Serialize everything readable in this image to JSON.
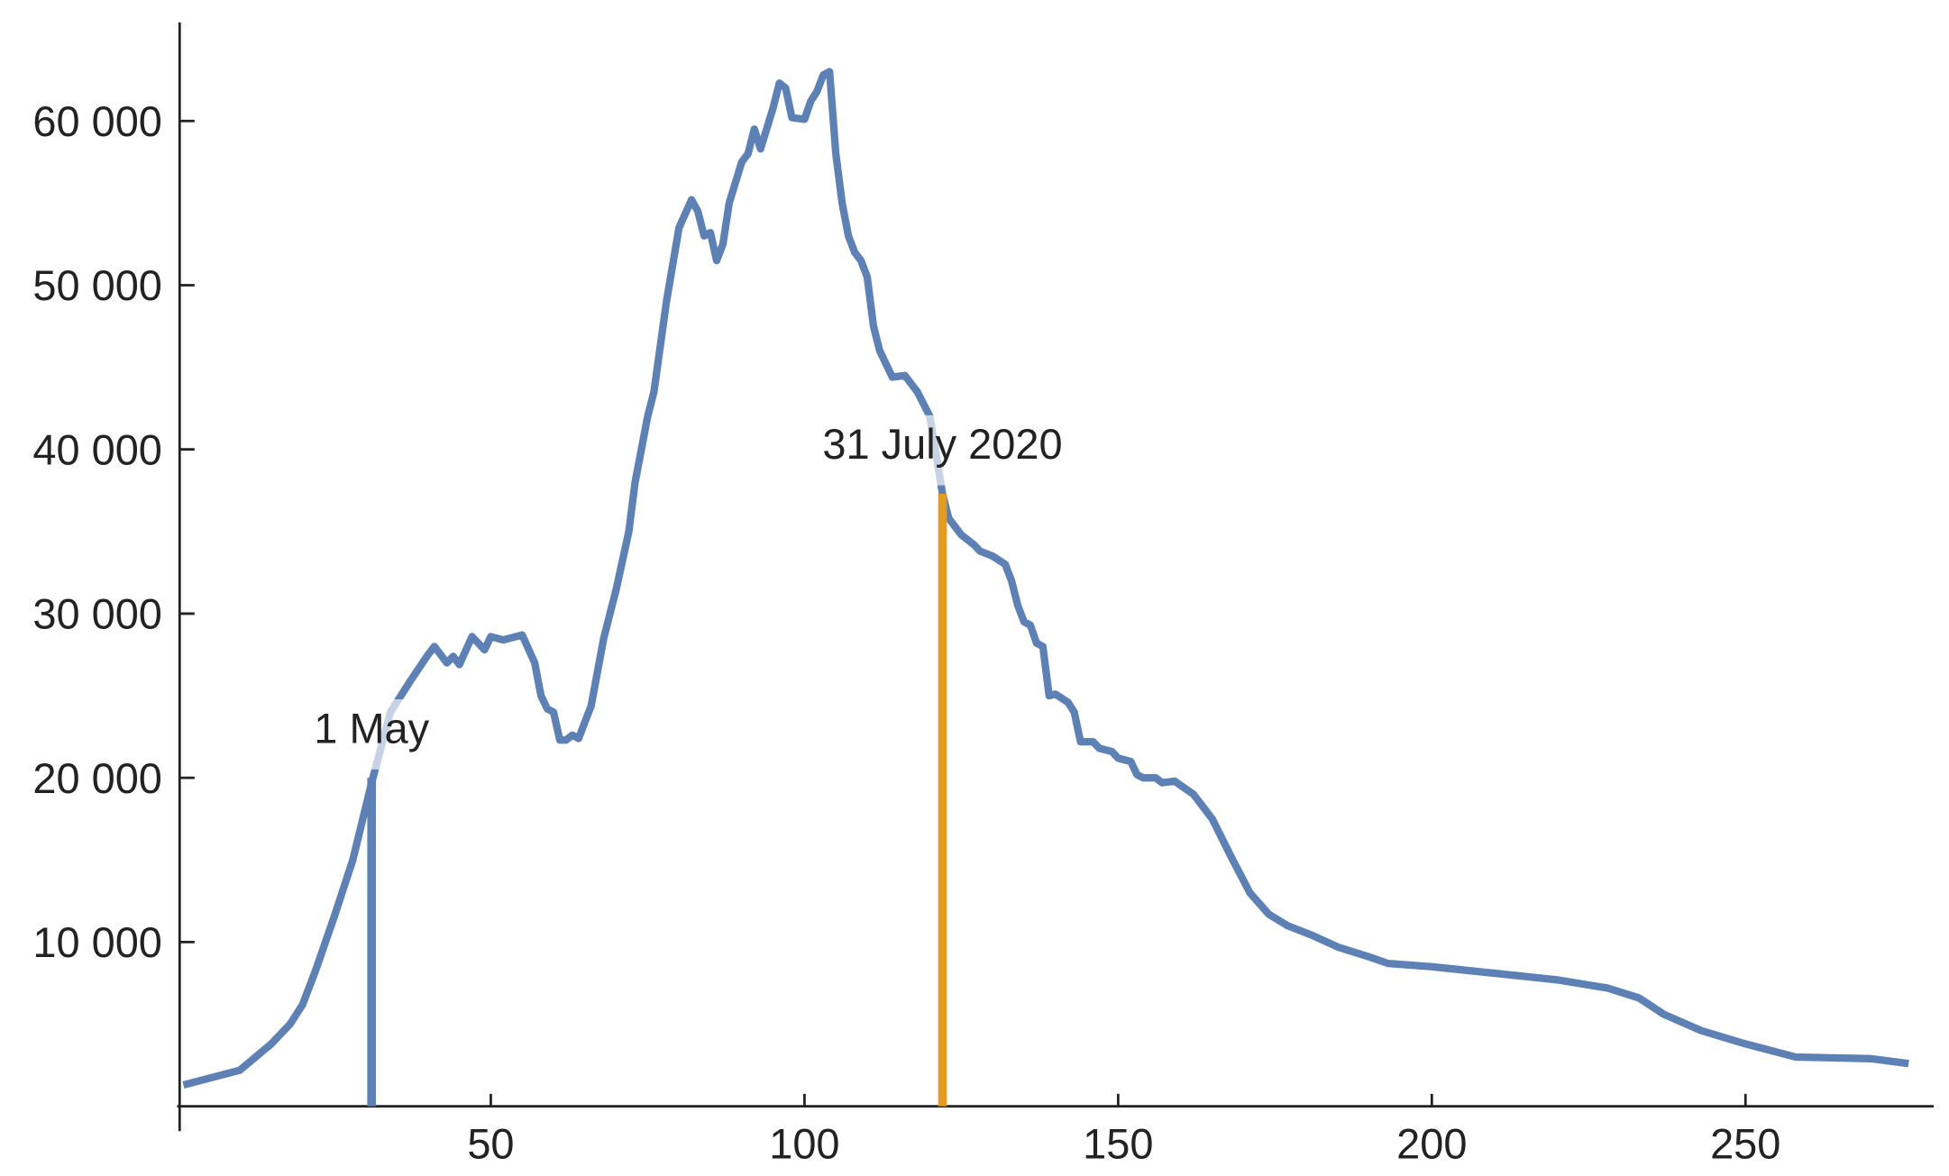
{
  "chart_data": {
    "type": "line",
    "x": [
      1,
      10,
      15,
      18,
      20,
      22,
      25,
      28,
      31,
      34,
      37,
      40,
      41,
      43,
      44,
      45,
      47,
      49,
      50,
      52,
      55,
      57,
      58,
      59,
      60,
      61,
      62,
      63,
      64,
      66,
      68,
      70,
      72,
      73,
      75,
      76,
      78,
      80,
      82,
      83,
      84,
      85,
      86,
      87,
      88,
      90,
      91,
      92,
      93,
      95,
      96,
      97,
      98,
      100,
      101,
      102,
      103,
      104,
      105,
      106,
      107,
      108,
      109,
      110,
      111,
      112,
      114,
      116,
      118,
      120,
      122,
      123,
      125,
      127,
      128,
      130,
      132,
      133,
      134,
      135,
      136,
      137,
      138,
      139,
      140,
      142,
      143,
      144,
      146,
      147,
      149,
      150,
      152,
      153,
      154,
      156,
      157,
      159,
      162,
      165,
      168,
      171,
      174,
      177,
      181,
      185,
      190,
      193,
      200,
      210,
      220,
      228,
      233,
      237,
      243,
      250,
      258,
      270,
      276
    ],
    "values": [
      1300,
      2200,
      3800,
      5000,
      6200,
      8200,
      11500,
      15000,
      19700,
      24000,
      25800,
      27500,
      28000,
      27000,
      27400,
      26900,
      28600,
      27800,
      28600,
      28400,
      28700,
      27000,
      25000,
      24200,
      24000,
      22300,
      22300,
      22600,
      22400,
      24400,
      28500,
      31500,
      35000,
      38000,
      42000,
      43500,
      49000,
      53500,
      55200,
      54500,
      53000,
      53200,
      51500,
      52500,
      55000,
      57500,
      58000,
      59500,
      58300,
      60800,
      62300,
      62000,
      60200,
      60100,
      61200,
      61800,
      62800,
      63000,
      58000,
      55000,
      53000,
      52000,
      51500,
      50500,
      47500,
      46000,
      44400,
      44500,
      43500,
      42000,
      37300,
      35800,
      34800,
      34200,
      33800,
      33500,
      33000,
      32000,
      30500,
      29500,
      29300,
      28200,
      28000,
      25000,
      25100,
      24600,
      24000,
      22200,
      22200,
      21800,
      21600,
      21200,
      21000,
      20200,
      20000,
      20000,
      19700,
      19800,
      19000,
      17500,
      15200,
      13000,
      11700,
      11000,
      10400,
      9700,
      9100,
      8700,
      8500,
      8100,
      7700,
      7200,
      6600,
      5600,
      4600,
      3800,
      3000,
      2900,
      2600
    ],
    "color": "#5e81b5",
    "xlim": [
      0,
      280
    ],
    "ylim": [
      0,
      66000
    ],
    "xticks": [
      50,
      100,
      150,
      200,
      250
    ],
    "yticks": [
      {
        "value": 10000,
        "label": "10 000"
      },
      {
        "value": 20000,
        "label": "20 000"
      },
      {
        "value": 30000,
        "label": "30 000"
      },
      {
        "value": 40000,
        "label": "40 000"
      },
      {
        "value": 50000,
        "label": "50 000"
      },
      {
        "value": 60000,
        "label": "60 000"
      }
    ],
    "annotations": [
      {
        "text": "1 May",
        "x": 31,
        "y": 20000,
        "color": "#5e81b5"
      },
      {
        "text": "31 July 2020",
        "x": 122,
        "y": 37300,
        "color": "#e19c24"
      }
    ]
  }
}
